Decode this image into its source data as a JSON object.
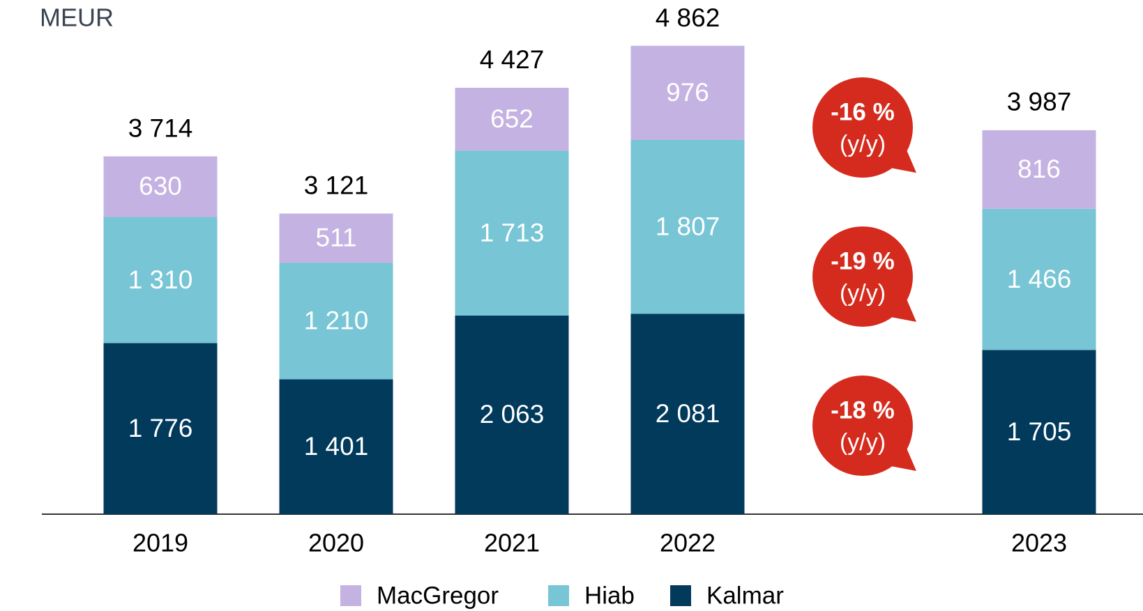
{
  "chart_data": {
    "type": "stacked_bar",
    "unit_label": "MEUR",
    "categories": [
      "2019",
      "2020",
      "2021",
      "2022",
      "2023"
    ],
    "series": [
      {
        "name": "Kalmar",
        "color": "#023a5c",
        "values": [
          1776,
          1401,
          2063,
          2081,
          1705
        ],
        "value_labels": [
          "1 776",
          "1 401",
          "2 063",
          "2 081",
          "1 705"
        ]
      },
      {
        "name": "Hiab",
        "color": "#77c5d5",
        "values": [
          1310,
          1210,
          1713,
          1807,
          1466
        ],
        "value_labels": [
          "1 310",
          "1 210",
          "1 713",
          "1 807",
          "1 466"
        ]
      },
      {
        "name": "MacGregor",
        "color": "#c4b3e2",
        "values": [
          630,
          511,
          652,
          976,
          816
        ]
      }
    ],
    "totals": [
      3714,
      3121,
      4427,
      4862,
      3987
    ],
    "total_labels": [
      "3 714",
      "3 121",
      "4 427",
      "4 862",
      "3 987"
    ],
    "annotations": [
      {
        "text": "-16 %",
        "note": "(y/y)"
      },
      {
        "text": "-19 %",
        "note": "(y/y)"
      },
      {
        "text": "-18 %",
        "note": "(y/y)"
      }
    ],
    "annotation_color": "#d42b1e",
    "legend": "bottom"
  }
}
